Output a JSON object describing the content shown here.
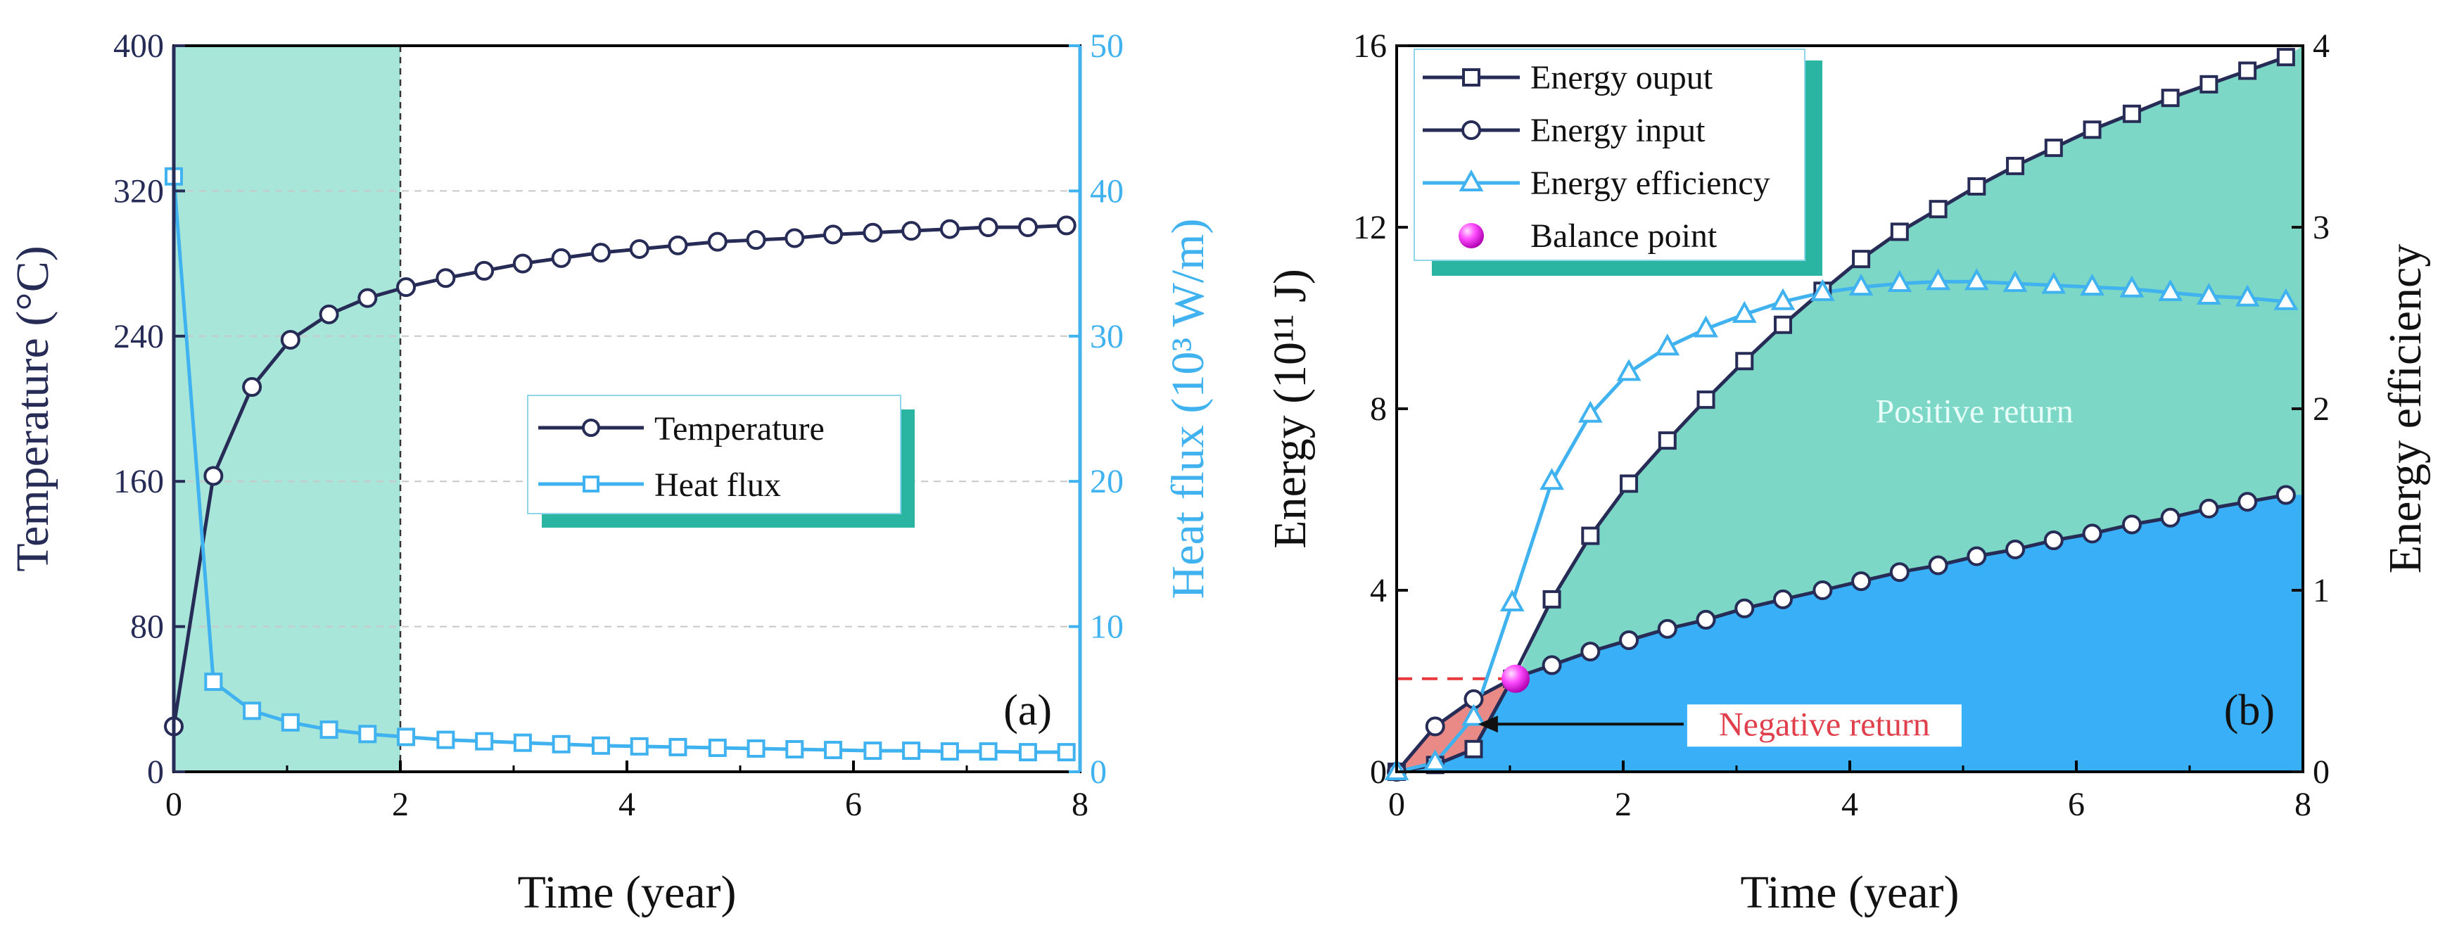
{
  "chart_data": [
    {
      "panel_label": "(a)",
      "type": "line",
      "xlabel": "Time (year)",
      "ylabel": "Temperature (°C)",
      "y2label": "Heat flux (10³ W/m)",
      "xlim": [
        0,
        8
      ],
      "ylim": [
        0,
        400
      ],
      "y2lim": [
        0,
        50
      ],
      "xticks": [
        "0",
        "2",
        "4",
        "6",
        "8"
      ],
      "yticks": [
        "0",
        "80",
        "160",
        "240",
        "320",
        "400"
      ],
      "y2ticks": [
        "0",
        "10",
        "20",
        "30",
        "40",
        "50"
      ],
      "shaded_region": {
        "x": [
          0,
          2
        ],
        "color": "#a8e6da"
      },
      "vline_x": 2,
      "legend_position": "center-right",
      "series": [
        {
          "name": "Temperature",
          "axis": "left",
          "color": "#262c56",
          "marker": "circle",
          "x": [
            0,
            0.35,
            0.69,
            1.03,
            1.37,
            1.71,
            2.05,
            2.4,
            2.74,
            3.08,
            3.42,
            3.77,
            4.11,
            4.45,
            4.8,
            5.14,
            5.48,
            5.82,
            6.17,
            6.51,
            6.85,
            7.19,
            7.54,
            7.88
          ],
          "values": [
            25,
            163,
            212,
            238,
            252,
            261,
            267,
            272,
            276,
            280,
            283,
            286,
            288,
            290,
            292,
            293,
            294,
            296,
            297,
            298,
            299,
            300,
            300,
            301
          ]
        },
        {
          "name": "Heat flux",
          "axis": "right",
          "color": "#3fb2ef",
          "marker": "square",
          "x": [
            0,
            0.35,
            0.69,
            1.03,
            1.37,
            1.71,
            2.05,
            2.4,
            2.74,
            3.08,
            3.42,
            3.77,
            4.11,
            4.45,
            4.8,
            5.14,
            5.48,
            5.82,
            6.17,
            6.51,
            6.85,
            7.19,
            7.54,
            7.88
          ],
          "values": [
            41,
            6.2,
            4.2,
            3.4,
            2.9,
            2.6,
            2.4,
            2.2,
            2.1,
            2.0,
            1.9,
            1.8,
            1.75,
            1.7,
            1.65,
            1.6,
            1.55,
            1.5,
            1.45,
            1.45,
            1.4,
            1.4,
            1.35,
            1.35
          ]
        }
      ]
    },
    {
      "panel_label": "(b)",
      "type": "line",
      "xlabel": "Time (year)",
      "ylabel": "Energy (10¹¹ J)",
      "y2label": "Energy efficiency",
      "xlim": [
        0,
        8
      ],
      "ylim": [
        0,
        16
      ],
      "y2lim": [
        0,
        4
      ],
      "xticks": [
        "0",
        "2",
        "4",
        "6",
        "8"
      ],
      "yticks": [
        "0",
        "4",
        "8",
        "12",
        "16"
      ],
      "y2ticks": [
        "0",
        "1",
        "2",
        "3",
        "4"
      ],
      "legend_position": "top-left",
      "annotations": [
        {
          "text": "Positive return",
          "x": 5.1,
          "y": 7.7,
          "color": "#e8fff9"
        },
        {
          "text": "Negative return",
          "x": 3.9,
          "y": 1.05,
          "color": "#e0404c"
        }
      ],
      "balance_point": {
        "x": 1.05,
        "y": 2.05
      },
      "area_colors": {
        "positive": "#7cd7c6",
        "input": "#38aff6",
        "negative": "#e98a86"
      },
      "series": [
        {
          "name": "Energy ouput",
          "axis": "left",
          "color": "#262c56",
          "marker": "square",
          "x": [
            0,
            0.34,
            0.68,
            1.02,
            1.37,
            1.71,
            2.05,
            2.39,
            2.73,
            3.07,
            3.41,
            3.76,
            4.1,
            4.44,
            4.78,
            5.12,
            5.46,
            5.8,
            6.14,
            6.49,
            6.83,
            7.17,
            7.51,
            7.85
          ],
          "values": [
            0,
            0.15,
            0.5,
            2.05,
            3.8,
            5.2,
            6.35,
            7.3,
            8.2,
            9.05,
            9.85,
            10.6,
            11.3,
            11.9,
            12.4,
            12.9,
            13.35,
            13.75,
            14.15,
            14.5,
            14.85,
            15.15,
            15.45,
            15.75
          ]
        },
        {
          "name": "Energy input",
          "axis": "left",
          "color": "#262c56",
          "marker": "circle",
          "x": [
            0,
            0.34,
            0.68,
            1.02,
            1.37,
            1.71,
            2.05,
            2.39,
            2.73,
            3.07,
            3.41,
            3.76,
            4.1,
            4.44,
            4.78,
            5.12,
            5.46,
            5.8,
            6.14,
            6.49,
            6.83,
            7.17,
            7.51,
            7.85
          ],
          "values": [
            0,
            1.0,
            1.6,
            2.05,
            2.35,
            2.65,
            2.9,
            3.15,
            3.35,
            3.6,
            3.8,
            4.0,
            4.2,
            4.4,
            4.55,
            4.75,
            4.9,
            5.1,
            5.25,
            5.45,
            5.6,
            5.8,
            5.95,
            6.1
          ]
        },
        {
          "name": "Energy efficiency",
          "axis": "right",
          "color": "#3fb2ef",
          "marker": "triangle",
          "x": [
            0,
            0.34,
            0.68,
            1.02,
            1.37,
            1.71,
            2.05,
            2.39,
            2.73,
            3.07,
            3.41,
            3.76,
            4.1,
            4.44,
            4.78,
            5.12,
            5.46,
            5.8,
            6.14,
            6.49,
            6.83,
            7.17,
            7.51,
            7.85
          ],
          "values": [
            0,
            0.05,
            0.3,
            0.93,
            1.6,
            1.97,
            2.2,
            2.34,
            2.44,
            2.52,
            2.59,
            2.64,
            2.67,
            2.69,
            2.7,
            2.7,
            2.69,
            2.68,
            2.67,
            2.66,
            2.64,
            2.62,
            2.61,
            2.59
          ]
        },
        {
          "name": "Balance point",
          "axis": "left",
          "color": "#ff33ff",
          "marker": "sphere",
          "x": [
            1.05
          ],
          "values": [
            2.05
          ]
        }
      ]
    }
  ]
}
